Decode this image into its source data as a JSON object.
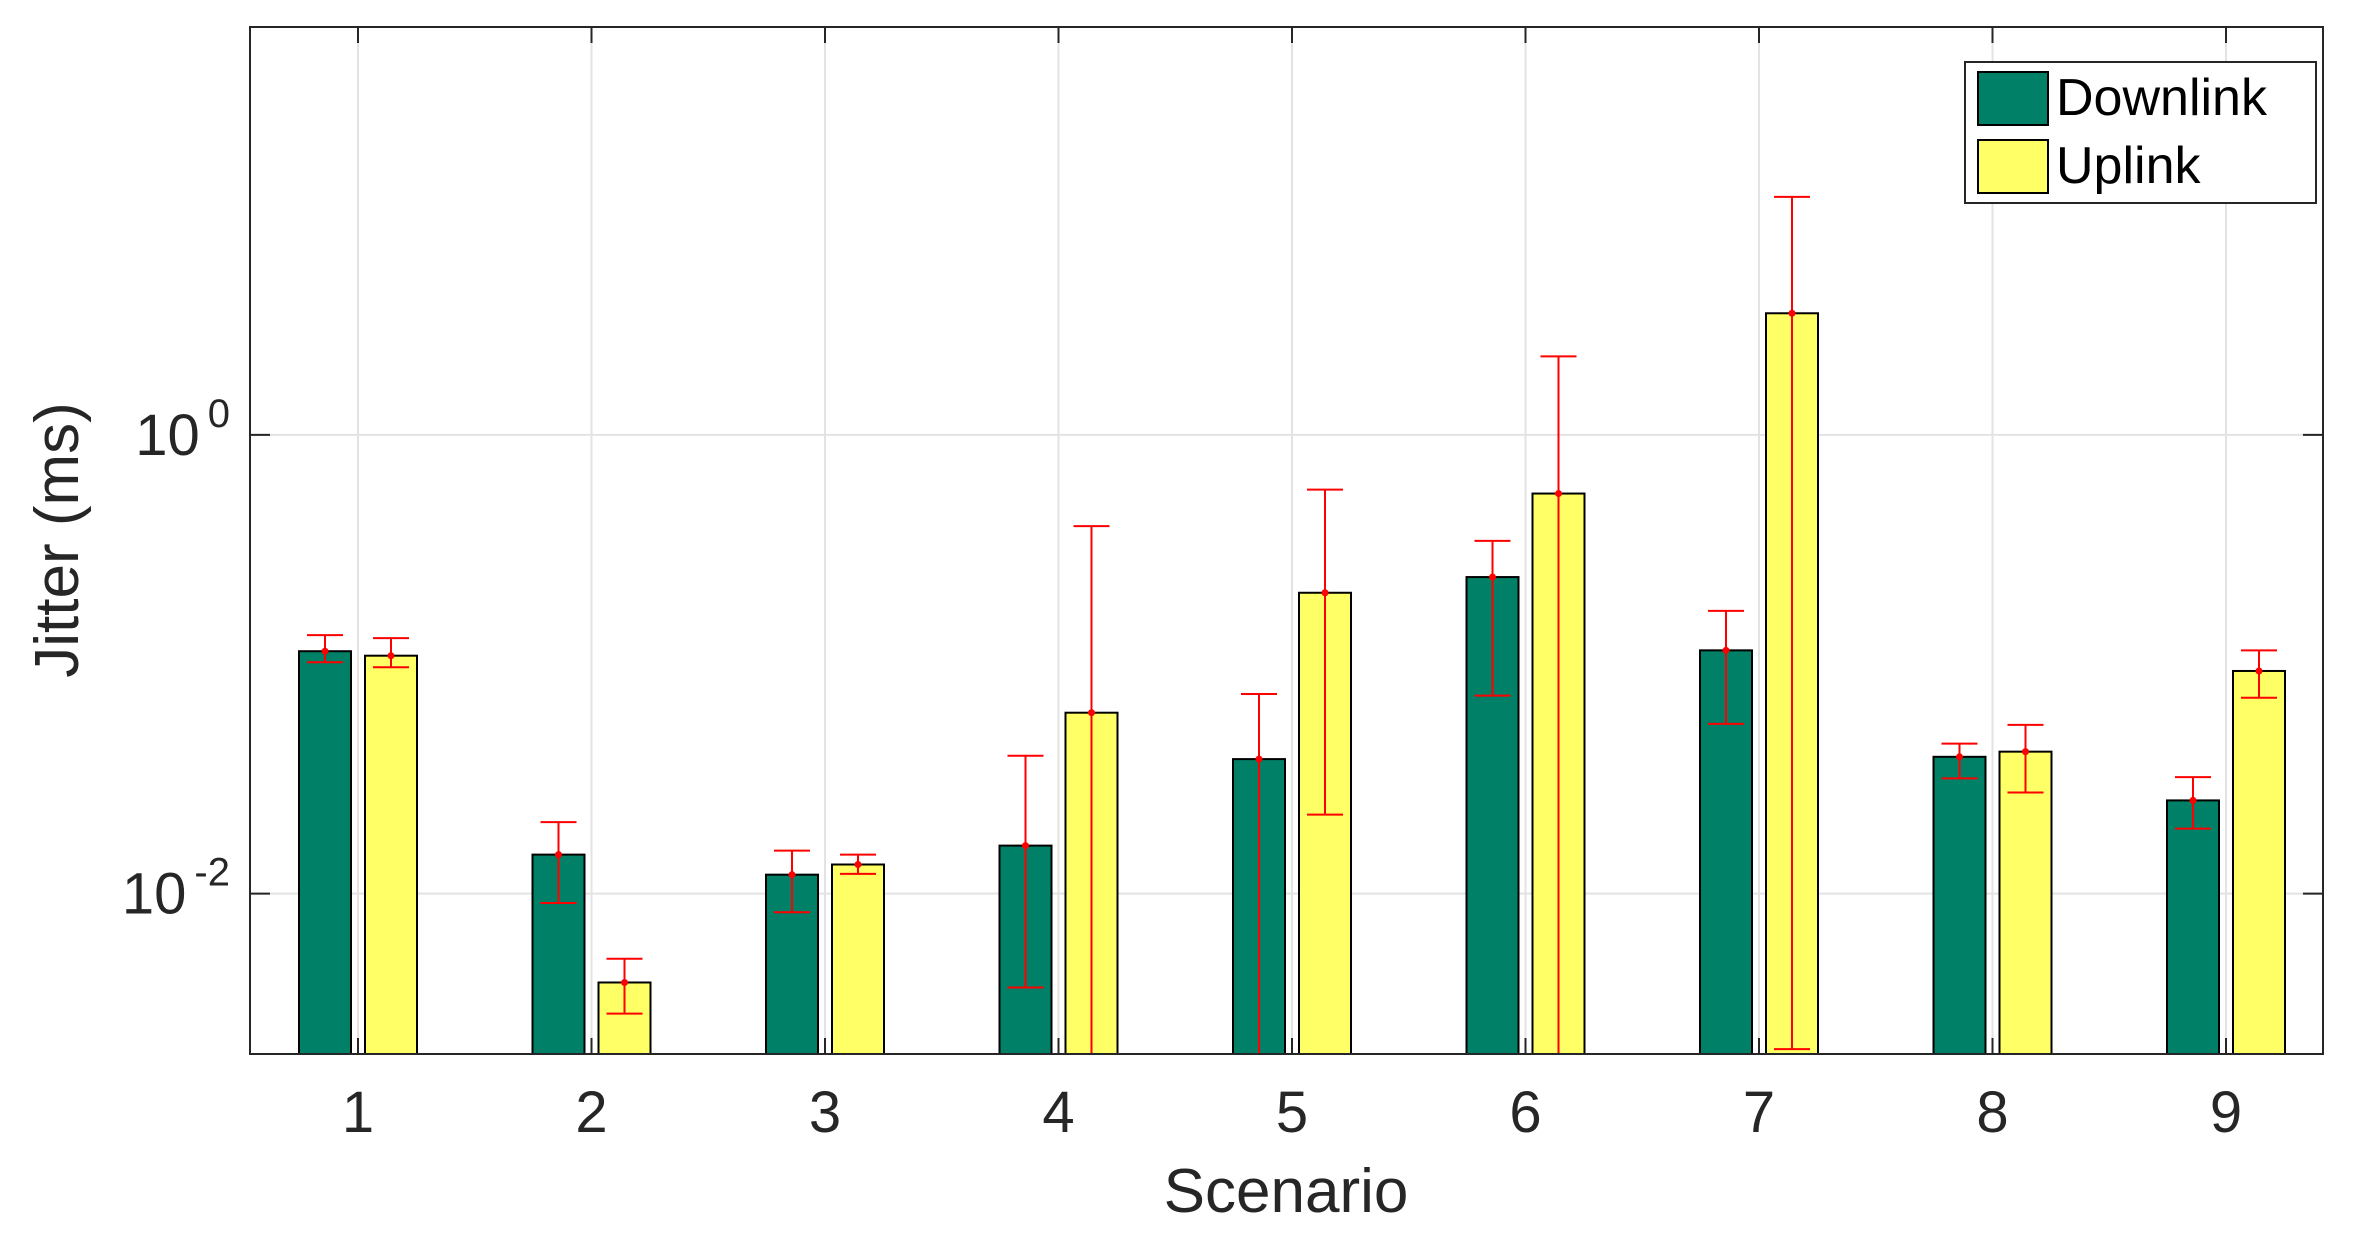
{
  "chart_data": {
    "type": "bar",
    "title": "",
    "xlabel": "Scenario",
    "ylabel": "Jitter (ms)",
    "yscale": "log",
    "ylim": [
      0.002,
      60
    ],
    "categories": [
      "1",
      "2",
      "3",
      "4",
      "5",
      "6",
      "7",
      "8",
      "9"
    ],
    "ytick_labels": [
      {
        "value": 1,
        "base": "10",
        "exponent": "0"
      },
      {
        "value": 0.01,
        "base": "10",
        "exponent": "-2"
      }
    ],
    "grid": true,
    "legend_location": "top-right",
    "series": [
      {
        "name": "Downlink",
        "color": "#008066",
        "values": [
          0.114,
          0.0148,
          0.0121,
          0.0162,
          0.0386,
          0.24,
          0.115,
          0.0395,
          0.0255
        ],
        "err_low": [
          0.102,
          0.0091,
          0.0083,
          0.0039,
          0.002,
          0.073,
          0.055,
          0.0318,
          0.0192
        ],
        "err_high": [
          0.134,
          0.0205,
          0.0154,
          0.0399,
          0.0742,
          0.345,
          0.171,
          0.0451,
          0.0322
        ]
      },
      {
        "name": "Uplink",
        "color": "#ffff66",
        "values": [
          0.109,
          0.0041,
          0.0134,
          0.0615,
          0.205,
          0.555,
          3.39,
          0.0416,
          0.0935
        ],
        "err_low": [
          0.097,
          0.003,
          0.0122,
          0.002,
          0.0221,
          0.002,
          0.0021,
          0.0276,
          0.0715
        ],
        "err_high": [
          0.13,
          0.0052,
          0.0148,
          0.4,
          0.577,
          2.2,
          10.9,
          0.0544,
          0.115
        ]
      }
    ]
  }
}
